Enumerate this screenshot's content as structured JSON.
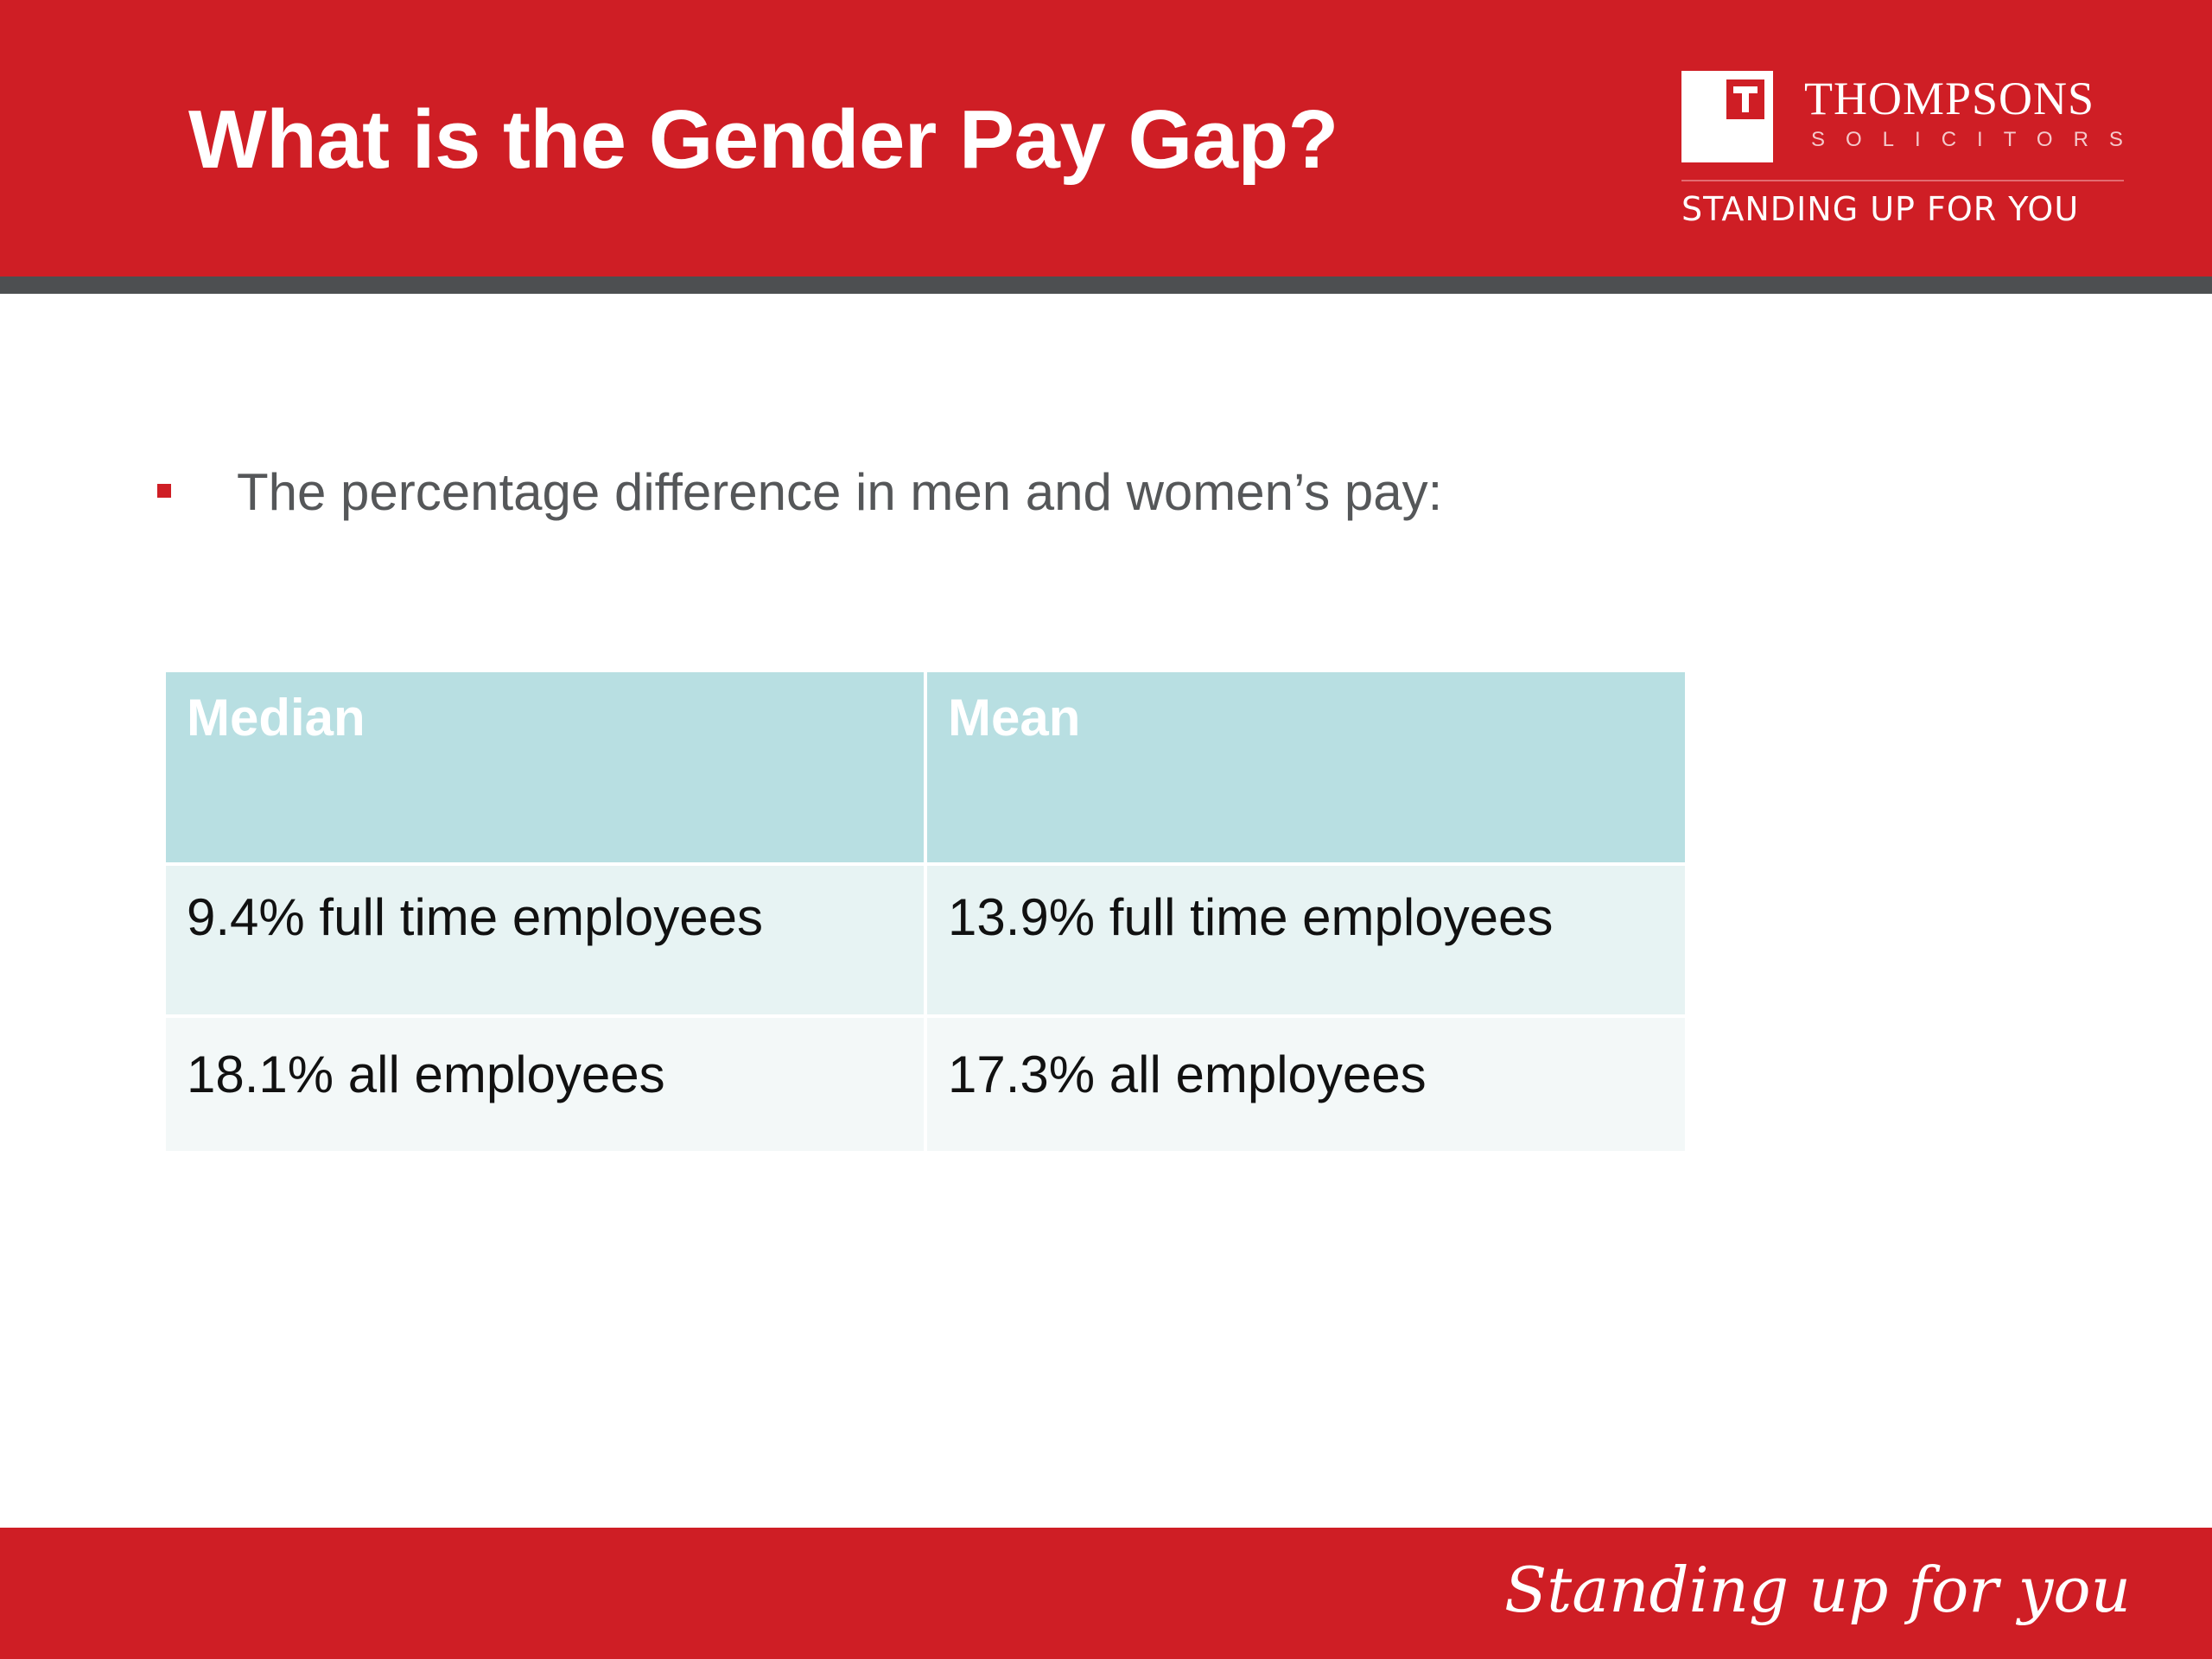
{
  "header": {
    "title": "What is the Gender Pay Gap?"
  },
  "logo": {
    "mark_letter": "T",
    "name": "THOMPSONS",
    "subtitle": "SOLICITORS",
    "tagline": "STANDING UP FOR YOU"
  },
  "bullet": {
    "text": "The percentage difference in men and women’s pay:"
  },
  "table": {
    "headers": [
      "Median",
      "Mean"
    ],
    "rows": [
      [
        "9.4% full time employees",
        "13.9% full time employees"
      ],
      [
        "18.1% all employees",
        "17.3% all employees"
      ]
    ]
  },
  "footer": {
    "tagline": "Standing up for you"
  },
  "colors": {
    "brand_red": "#cf1e25",
    "rule_grey": "#4d4f51",
    "table_header": "#b8dfe2",
    "table_row_1": "#e7f3f3",
    "table_row_2": "#f3f8f8"
  }
}
